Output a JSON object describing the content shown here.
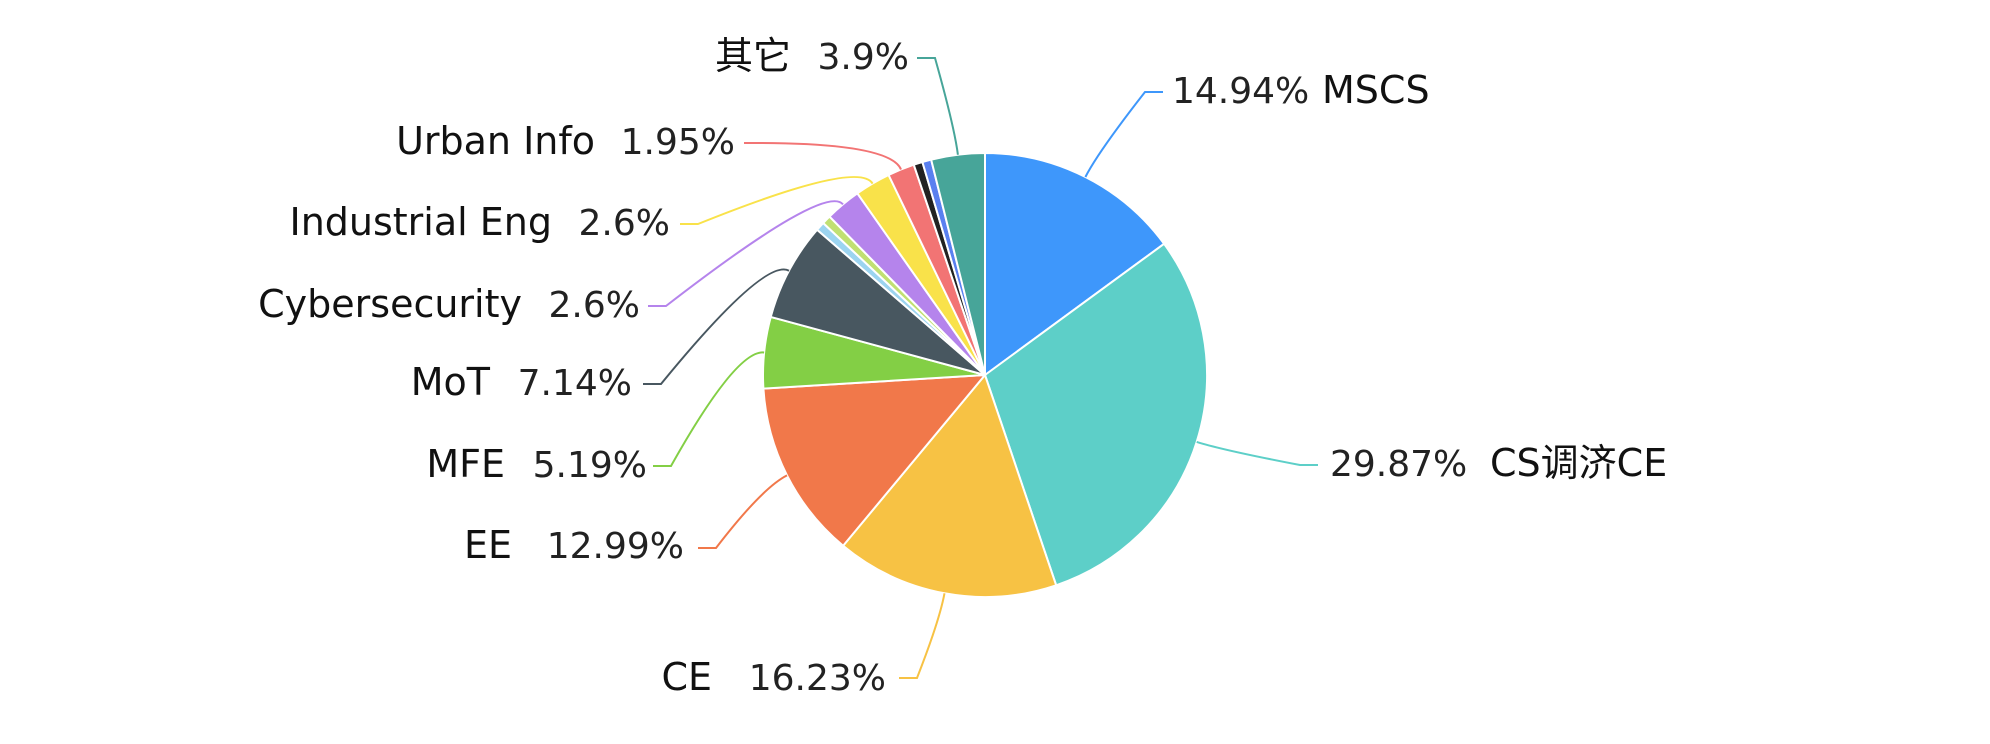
{
  "chart_data": {
    "type": "pie",
    "slices": [
      {
        "label": "MSCS",
        "value": 14.94,
        "pct_label": "14.94%",
        "color": "#3e97fb",
        "labelled": true
      },
      {
        "label": "CS调济CE",
        "value": 29.87,
        "pct_label": "29.87%",
        "color": "#5dcfc8",
        "labelled": true
      },
      {
        "label": "CE",
        "value": 16.23,
        "pct_label": "16.23%",
        "color": "#f7c244",
        "labelled": true
      },
      {
        "label": "EE",
        "value": 12.99,
        "pct_label": "12.99%",
        "color": "#f1784a",
        "labelled": true
      },
      {
        "label": "MFE",
        "value": 5.19,
        "pct_label": "5.19%",
        "color": "#83cf45",
        "labelled": true
      },
      {
        "label": "MoT",
        "value": 7.14,
        "pct_label": "7.14%",
        "color": "#485760",
        "labelled": true
      },
      {
        "label": "",
        "value": 0.65,
        "pct_label": "",
        "color": "#9cd4f0",
        "labelled": false
      },
      {
        "label": "",
        "value": 0.65,
        "pct_label": "",
        "color": "#c1e072",
        "labelled": false
      },
      {
        "label": "Cybersecurity",
        "value": 2.6,
        "pct_label": "2.6%",
        "color": "#b584ec",
        "labelled": true
      },
      {
        "label": "Industrial Eng",
        "value": 2.6,
        "pct_label": "2.6%",
        "color": "#f9e24a",
        "labelled": true
      },
      {
        "label": "Urban Info",
        "value": 1.95,
        "pct_label": "1.95%",
        "color": "#f27474",
        "labelled": true
      },
      {
        "label": "",
        "value": 0.65,
        "pct_label": "",
        "color": "#222222",
        "labelled": false
      },
      {
        "label": "",
        "value": 0.65,
        "pct_label": "",
        "color": "#5a80f0",
        "labelled": false
      },
      {
        "label": "其它",
        "value": 3.9,
        "pct_label": "3.9%",
        "color": "#47a599",
        "labelled": true
      }
    ],
    "start_angle_deg": 0,
    "direction": "clockwise"
  }
}
